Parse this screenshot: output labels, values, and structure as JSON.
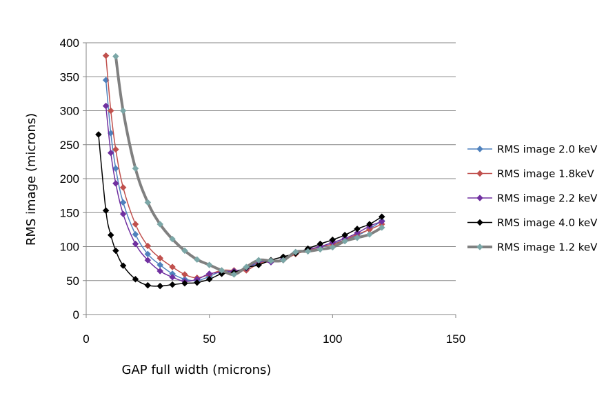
{
  "chart_data": {
    "type": "line",
    "xlabel": "GAP full width (microns)",
    "ylabel": "RMS image  (microns)",
    "xlim": [
      0,
      150
    ],
    "ylim": [
      0,
      400
    ],
    "x_ticks": [
      0,
      50,
      100,
      150
    ],
    "y_ticks": [
      0,
      50,
      100,
      150,
      200,
      250,
      300,
      350,
      400
    ],
    "grid": "horizontal",
    "legend_position": "right",
    "series": [
      {
        "name": "RMS image 2.0 keV",
        "color": "#4F81BD",
        "marker_color": "#4F81BD",
        "line_width": 1.5,
        "points": [
          [
            8,
            345
          ],
          [
            10,
            267
          ],
          [
            12,
            215
          ],
          [
            15,
            165
          ],
          [
            20,
            118
          ],
          [
            25,
            89
          ],
          [
            30,
            73
          ],
          [
            35,
            60
          ],
          [
            40,
            52
          ],
          [
            45,
            50
          ],
          [
            50,
            56
          ],
          [
            55,
            64
          ],
          [
            60,
            64
          ],
          [
            65,
            68
          ],
          [
            70,
            76
          ],
          [
            75,
            79
          ],
          [
            80,
            81
          ],
          [
            85,
            90
          ],
          [
            90,
            96
          ],
          [
            95,
            99
          ],
          [
            100,
            104
          ],
          [
            105,
            110
          ],
          [
            110,
            116
          ],
          [
            115,
            126
          ],
          [
            120,
            138
          ]
        ]
      },
      {
        "name": "RMS image 1.8keV",
        "color": "#C0504D",
        "marker_color": "#C0504D",
        "line_width": 1.5,
        "points": [
          [
            8,
            381
          ],
          [
            10,
            300
          ],
          [
            12,
            243
          ],
          [
            15,
            187
          ],
          [
            20,
            133
          ],
          [
            25,
            101
          ],
          [
            30,
            83
          ],
          [
            35,
            70
          ],
          [
            40,
            59
          ],
          [
            45,
            54
          ],
          [
            50,
            59
          ],
          [
            55,
            65
          ],
          [
            60,
            65
          ],
          [
            65,
            65
          ],
          [
            70,
            75
          ],
          [
            75,
            78
          ],
          [
            80,
            80
          ],
          [
            85,
            89
          ],
          [
            90,
            94
          ],
          [
            95,
            100
          ],
          [
            100,
            103
          ],
          [
            105,
            110
          ],
          [
            110,
            118
          ],
          [
            115,
            125
          ],
          [
            120,
            133
          ]
        ]
      },
      {
        "name": "RMS image 2.2 keV",
        "color": "#7030A0",
        "marker_color": "#7030A0",
        "line_width": 1.5,
        "points": [
          [
            8,
            307
          ],
          [
            10,
            238
          ],
          [
            12,
            193
          ],
          [
            15,
            148
          ],
          [
            20,
            104
          ],
          [
            25,
            80
          ],
          [
            30,
            64
          ],
          [
            35,
            55
          ],
          [
            40,
            49
          ],
          [
            45,
            52
          ],
          [
            50,
            60
          ],
          [
            55,
            62
          ],
          [
            60,
            64
          ],
          [
            65,
            68
          ],
          [
            70,
            78
          ],
          [
            75,
            77
          ],
          [
            80,
            82
          ],
          [
            85,
            91
          ],
          [
            90,
            96
          ],
          [
            95,
            100
          ],
          [
            100,
            106
          ],
          [
            105,
            112
          ],
          [
            110,
            120
          ],
          [
            115,
            130
          ],
          [
            120,
            137
          ]
        ]
      },
      {
        "name": "RMS image 4.0 keV",
        "color": "#000000",
        "marker_color": "#000000",
        "line_width": 1.5,
        "points": [
          [
            5,
            265
          ],
          [
            8,
            153
          ],
          [
            10,
            117
          ],
          [
            12,
            94
          ],
          [
            15,
            72
          ],
          [
            20,
            52
          ],
          [
            25,
            43
          ],
          [
            30,
            42
          ],
          [
            35,
            44
          ],
          [
            40,
            46
          ],
          [
            45,
            47
          ],
          [
            50,
            52
          ],
          [
            55,
            60
          ],
          [
            60,
            62
          ],
          [
            65,
            69
          ],
          [
            70,
            73
          ],
          [
            75,
            80
          ],
          [
            80,
            85
          ],
          [
            85,
            90
          ],
          [
            90,
            97
          ],
          [
            95,
            104
          ],
          [
            100,
            110
          ],
          [
            105,
            117
          ],
          [
            110,
            126
          ],
          [
            115,
            133
          ],
          [
            120,
            144
          ]
        ]
      },
      {
        "name": "RMS image 1.2 keV",
        "color": "#808080",
        "marker_color": "#7BA7A7",
        "line_width": 4,
        "points": [
          [
            12,
            380
          ],
          [
            15,
            300
          ],
          [
            20,
            215
          ],
          [
            25,
            165
          ],
          [
            30,
            133
          ],
          [
            35,
            111
          ],
          [
            40,
            94
          ],
          [
            45,
            81
          ],
          [
            50,
            73
          ],
          [
            55,
            65
          ],
          [
            60,
            59
          ],
          [
            65,
            70
          ],
          [
            70,
            80
          ],
          [
            75,
            79
          ],
          [
            80,
            80
          ],
          [
            85,
            92
          ],
          [
            90,
            93
          ],
          [
            95,
            96
          ],
          [
            100,
            99
          ],
          [
            105,
            108
          ],
          [
            110,
            113
          ],
          [
            115,
            118
          ],
          [
            120,
            128
          ]
        ]
      }
    ]
  }
}
